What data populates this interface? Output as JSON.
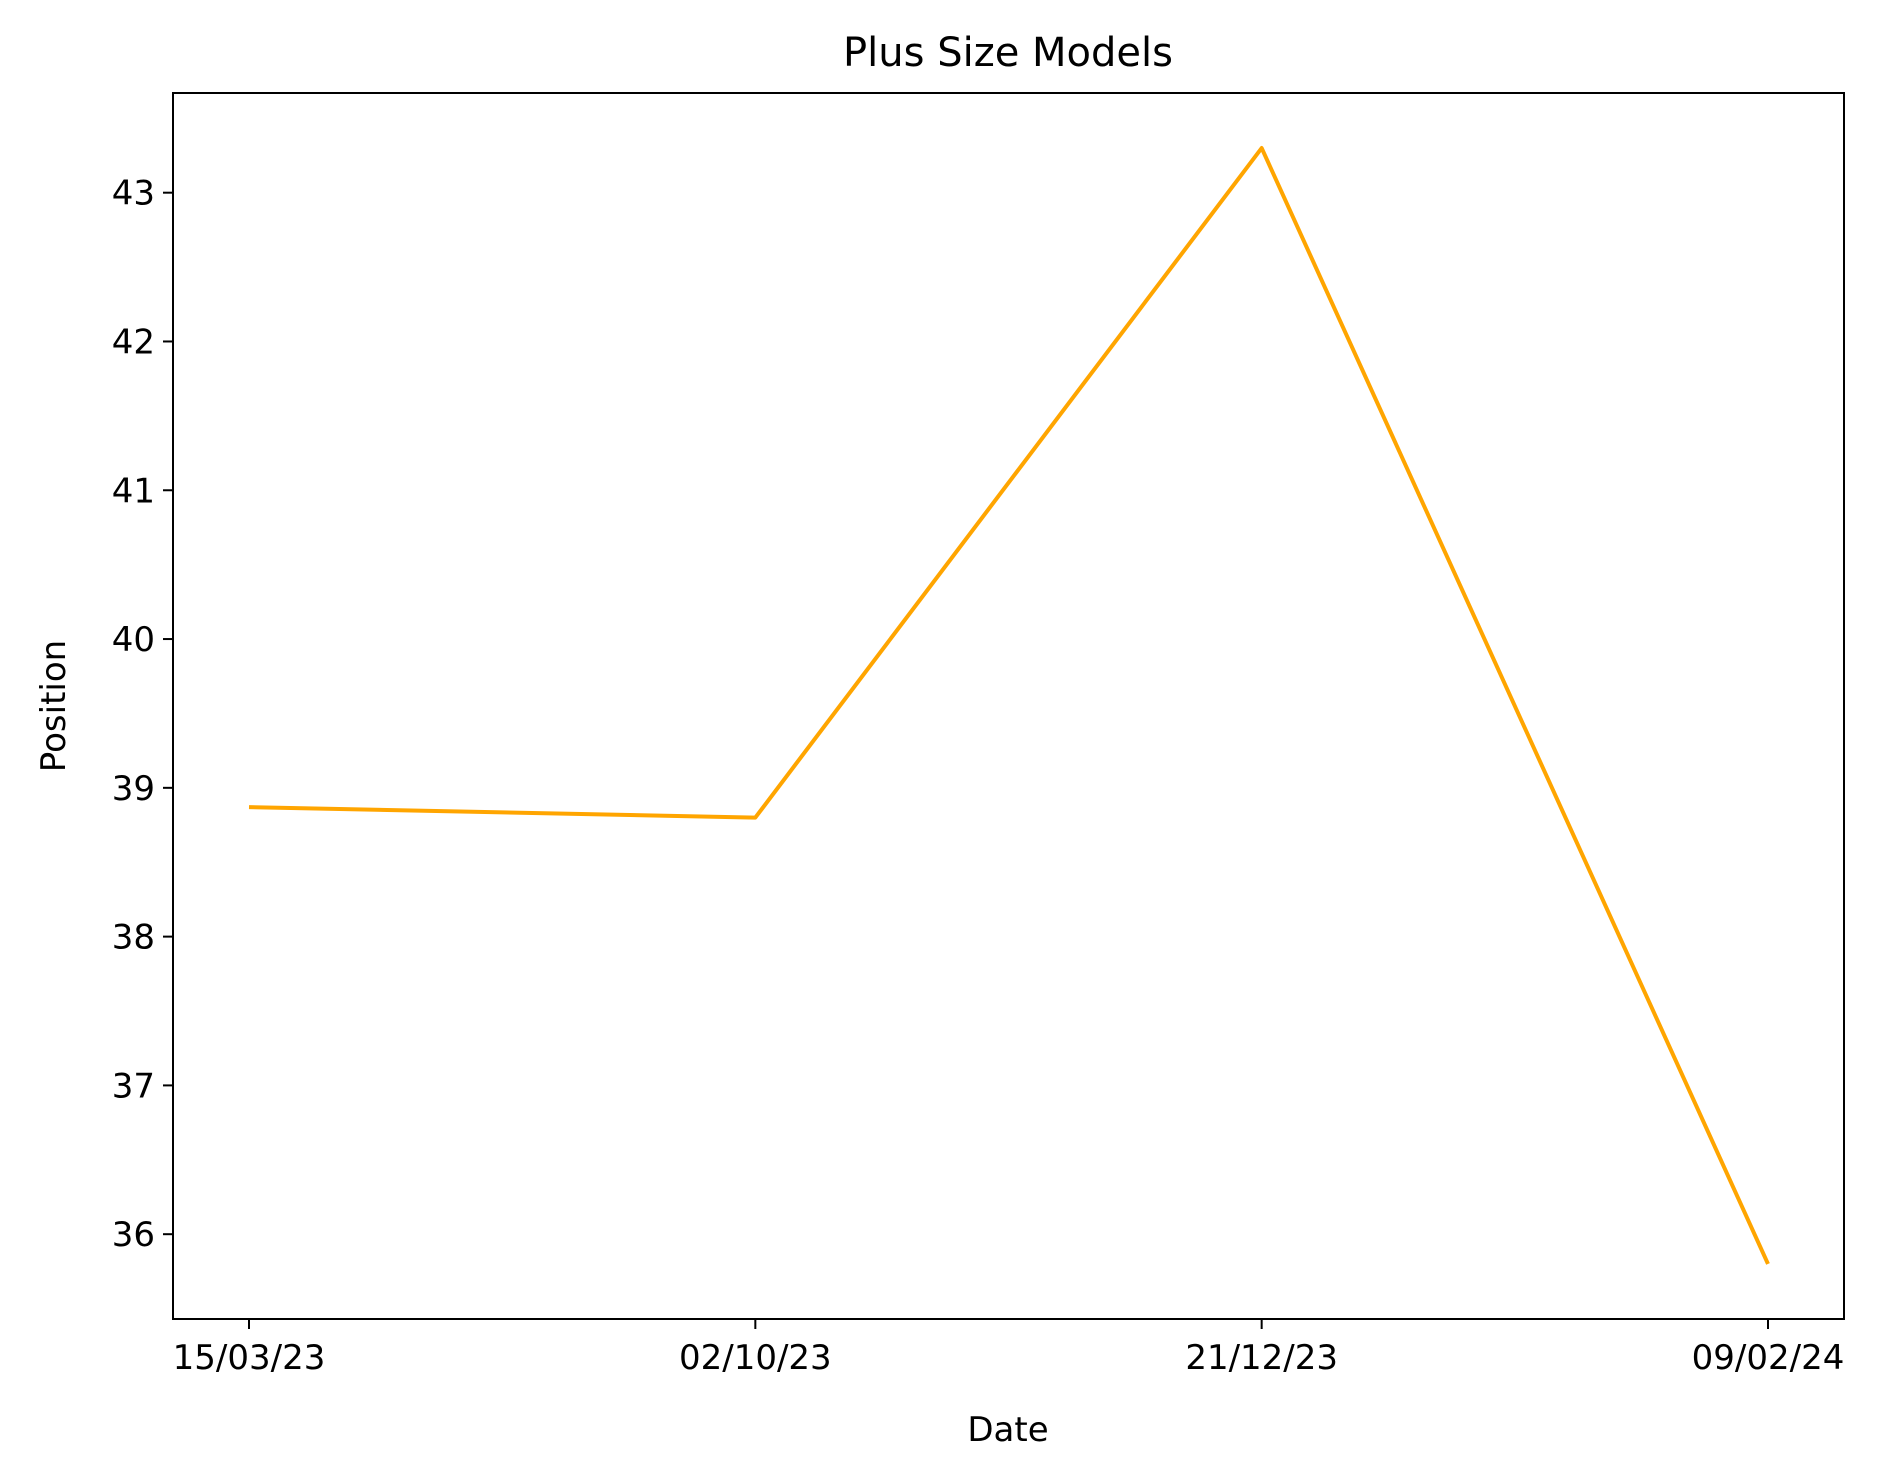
{
  "chart_data": {
    "type": "line",
    "title": "Plus Size Models",
    "xlabel": "Date",
    "ylabel": "Position",
    "categories": [
      "15/03/23",
      "02/10/23",
      "21/12/23",
      "09/02/24"
    ],
    "series": [
      {
        "values": [
          38.87,
          38.8,
          43.3,
          35.8
        ],
        "color": "#ffa500"
      }
    ],
    "ylim": [
      35.43,
      43.67
    ],
    "yticks": [
      36,
      37,
      38,
      39,
      40,
      41,
      42,
      43
    ],
    "grid": false,
    "legend": "none"
  }
}
